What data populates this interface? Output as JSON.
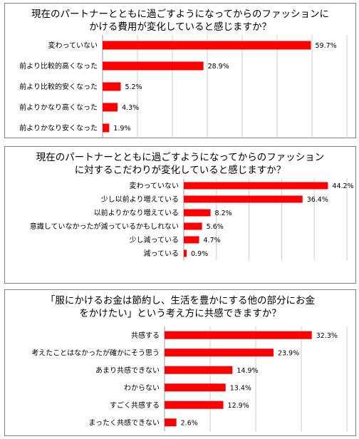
{
  "colors": {
    "bar": "#ff0000",
    "grid": "#cccccc",
    "axis": "#999999",
    "border": "#7f7f7f"
  },
  "chart_data": [
    {
      "type": "bar",
      "orientation": "horizontal",
      "title": "現在のパートナーとともに過ごすようになってからのファッションに\nかける費用が変化していると感じますか？",
      "categories": [
        "変わっていない",
        "前より比較的高くなった",
        "前より比較的安くなった",
        "前よりかなり高くなった",
        "前よりかなり安くなった"
      ],
      "values": [
        59.7,
        28.9,
        5.2,
        4.3,
        1.9
      ],
      "value_labels": [
        "59.7%",
        "28.9%",
        "5.2%",
        "4.3%",
        "1.9%"
      ],
      "xlim": [
        0,
        70
      ],
      "grid": true
    },
    {
      "type": "bar",
      "orientation": "horizontal",
      "title": "現在のパートナーとともに過ごすようになってからのファッション\nに対するこだわりが変化していると感じますか？",
      "categories": [
        "変わっていない",
        "少し以前より増えている",
        "以前よりかなり増えている",
        "意識していなかったが減っているかもしれない",
        "少し減っている",
        "減っている"
      ],
      "values": [
        44.2,
        36.4,
        8.2,
        5.6,
        4.7,
        0.9
      ],
      "value_labels": [
        "44.2%",
        "36.4%",
        "8.2%",
        "5.6%",
        "4.7%",
        "0.9%"
      ],
      "xlim": [
        0,
        50
      ],
      "grid": true
    },
    {
      "type": "bar",
      "orientation": "horizontal",
      "title": "「服にかけるお金は節約し、生活を豊かにする他の部分にお金\nをかけたい」という考え方に共感できますか？",
      "categories": [
        "共感する",
        "考えたことはなかったが確かにそう思う",
        "あまり共感できない",
        "わからない",
        "すごく共感する",
        "まったく共感できない"
      ],
      "values": [
        32.3,
        23.9,
        14.9,
        13.4,
        12.9,
        2.6
      ],
      "value_labels": [
        "32.3%",
        "23.9%",
        "14.9%",
        "13.4%",
        "12.9%",
        "2.6%"
      ],
      "xlim": [
        0,
        40
      ],
      "grid": true
    }
  ]
}
